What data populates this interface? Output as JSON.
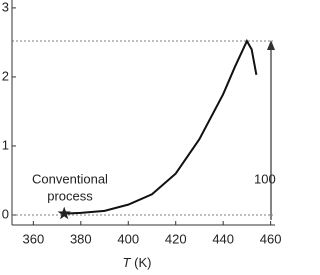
{
  "chart_data": {
    "type": "line",
    "x": [
      373,
      380,
      390,
      400,
      410,
      420,
      430,
      440,
      445,
      450,
      452,
      454
    ],
    "series": [
      {
        "color": "#111111",
        "values": [
          0.02,
          0.03,
          0.06,
          0.15,
          0.3,
          0.6,
          1.1,
          1.75,
          2.15,
          2.52,
          2.4,
          2.03
        ]
      }
    ],
    "xlim": [
      351,
      461
    ],
    "xticks": [
      360,
      380,
      400,
      420,
      440,
      460
    ],
    "ylim": [
      -0.145,
      3.1
    ],
    "yticks": [
      0,
      1,
      2,
      3
    ],
    "xlabel": {
      "symbol": "T",
      "unit": "(K)"
    },
    "reference_lines": [
      0,
      2.52
    ],
    "highlight_point": {
      "x": 373,
      "y": 0.02
    },
    "annotation_lines": [
      "Conventional",
      "process"
    ],
    "arrow_label": "100"
  }
}
